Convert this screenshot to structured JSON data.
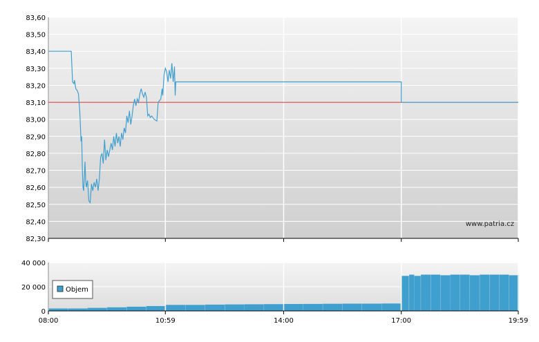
{
  "chart_data": [
    {
      "type": "line",
      "name": "price",
      "watermark": "www.patria.cz",
      "ylim": [
        82.3,
        83.6
      ],
      "y_ticks": [
        "83,60",
        "83,50",
        "83,40",
        "83,30",
        "83,20",
        "83,10",
        "83,00",
        "82,90",
        "82,80",
        "82,70",
        "82,60",
        "82,50",
        "82,40",
        "82,30"
      ],
      "x_ticks": [
        "08:00",
        "10:59",
        "14:00",
        "17:00",
        "19:59"
      ],
      "reference_line": {
        "value": 83.1,
        "color": "#d9302c"
      },
      "series": [
        {
          "color": "#3f9fcf",
          "points": [
            [
              "08:00",
              83.4
            ],
            [
              "08:35",
              83.4
            ],
            [
              "08:37",
              83.22
            ],
            [
              "08:39",
              83.21
            ],
            [
              "08:40",
              83.23
            ],
            [
              "08:42",
              83.18
            ],
            [
              "08:44",
              83.17
            ],
            [
              "08:46",
              83.15
            ],
            [
              "08:48",
              83.05
            ],
            [
              "08:50",
              82.87
            ],
            [
              "08:51",
              82.9
            ],
            [
              "08:52",
              82.7
            ],
            [
              "08:53",
              82.6
            ],
            [
              "08:54",
              82.58
            ],
            [
              "08:56",
              82.75
            ],
            [
              "08:57",
              82.65
            ],
            [
              "08:58",
              82.6
            ],
            [
              "09:00",
              82.64
            ],
            [
              "09:02",
              82.52
            ],
            [
              "09:04",
              82.51
            ],
            [
              "09:06",
              82.62
            ],
            [
              "09:08",
              82.58
            ],
            [
              "09:10",
              82.63
            ],
            [
              "09:12",
              82.6
            ],
            [
              "09:14",
              82.65
            ],
            [
              "09:16",
              82.58
            ],
            [
              "09:18",
              82.65
            ],
            [
              "09:20",
              82.78
            ],
            [
              "09:22",
              82.8
            ],
            [
              "09:24",
              82.74
            ],
            [
              "09:26",
              82.88
            ],
            [
              "09:28",
              82.76
            ],
            [
              "09:30",
              82.82
            ],
            [
              "09:32",
              82.78
            ],
            [
              "09:34",
              82.82
            ],
            [
              "09:36",
              82.86
            ],
            [
              "09:38",
              82.82
            ],
            [
              "09:40",
              82.9
            ],
            [
              "09:42",
              82.84
            ],
            [
              "09:44",
              82.92
            ],
            [
              "09:46",
              82.86
            ],
            [
              "09:48",
              82.9
            ],
            [
              "09:50",
              82.84
            ],
            [
              "09:52",
              82.92
            ],
            [
              "09:54",
              82.88
            ],
            [
              "09:56",
              82.95
            ],
            [
              "09:58",
              82.92
            ],
            [
              "10:00",
              83.02
            ],
            [
              "10:02",
              82.98
            ],
            [
              "10:04",
              83.05
            ],
            [
              "10:06",
              82.97
            ],
            [
              "10:08",
              83.02
            ],
            [
              "10:10",
              83.08
            ],
            [
              "10:12",
              83.12
            ],
            [
              "10:14",
              83.08
            ],
            [
              "10:16",
              83.12
            ],
            [
              "10:18",
              83.1
            ],
            [
              "10:20",
              83.15
            ],
            [
              "10:22",
              83.18
            ],
            [
              "10:24",
              83.15
            ],
            [
              "10:26",
              83.13
            ],
            [
              "10:28",
              83.16
            ],
            [
              "10:30",
              83.13
            ],
            [
              "10:32",
              83.02
            ],
            [
              "10:34",
              83.03
            ],
            [
              "10:36",
              83.01
            ],
            [
              "10:38",
              83.02
            ],
            [
              "10:42",
              83.0
            ],
            [
              "10:46",
              82.99
            ],
            [
              "10:48",
              83.1
            ],
            [
              "10:50",
              83.11
            ],
            [
              "10:52",
              83.12
            ],
            [
              "10:54",
              83.18
            ],
            [
              "10:55",
              83.14
            ],
            [
              "10:57",
              83.26
            ],
            [
              "10:59",
              83.3
            ],
            [
              "11:01",
              83.28
            ],
            [
              "11:03",
              83.22
            ],
            [
              "11:05",
              83.29
            ],
            [
              "11:07",
              83.24
            ],
            [
              "11:09",
              83.33
            ],
            [
              "11:11",
              83.22
            ],
            [
              "11:13",
              83.31
            ],
            [
              "11:14",
              83.14
            ],
            [
              "11:15",
              83.22
            ],
            [
              "17:00",
              83.22
            ],
            [
              "17:00",
              83.1
            ],
            [
              "19:59",
              83.1
            ]
          ]
        }
      ]
    },
    {
      "type": "bar",
      "name": "volume",
      "ylim": [
        0,
        40000
      ],
      "y_ticks": [
        "40 000",
        "20 000",
        "0"
      ],
      "x_ticks": [
        "08:00",
        "10:59",
        "14:00",
        "17:00",
        "19:59"
      ],
      "legend": {
        "label": "Objem",
        "color": "#3f9fcf",
        "placement": "left"
      },
      "bars": [
        [
          "08:00",
          2000
        ],
        [
          "08:30",
          2000
        ],
        [
          "09:00",
          2500
        ],
        [
          "09:30",
          3000
        ],
        [
          "10:00",
          3500
        ],
        [
          "10:30",
          4000
        ],
        [
          "11:00",
          5000
        ],
        [
          "11:30",
          5000
        ],
        [
          "12:00",
          5200
        ],
        [
          "12:30",
          5400
        ],
        [
          "13:00",
          5500
        ],
        [
          "13:30",
          5600
        ],
        [
          "14:00",
          5700
        ],
        [
          "14:30",
          5800
        ],
        [
          "15:00",
          5900
        ],
        [
          "15:30",
          6000
        ],
        [
          "16:00",
          6000
        ],
        [
          "16:30",
          6100
        ],
        [
          "16:59",
          6100
        ],
        [
          "17:00",
          29000
        ],
        [
          "17:12",
          30000
        ],
        [
          "17:20",
          29000
        ],
        [
          "17:30",
          30000
        ],
        [
          "17:45",
          30000
        ],
        [
          "18:00",
          29500
        ],
        [
          "18:15",
          30000
        ],
        [
          "18:30",
          30000
        ],
        [
          "18:45",
          29500
        ],
        [
          "19:00",
          30000
        ],
        [
          "19:15",
          30000
        ],
        [
          "19:30",
          30000
        ],
        [
          "19:45",
          29500
        ],
        [
          "19:59",
          30000
        ]
      ]
    }
  ]
}
